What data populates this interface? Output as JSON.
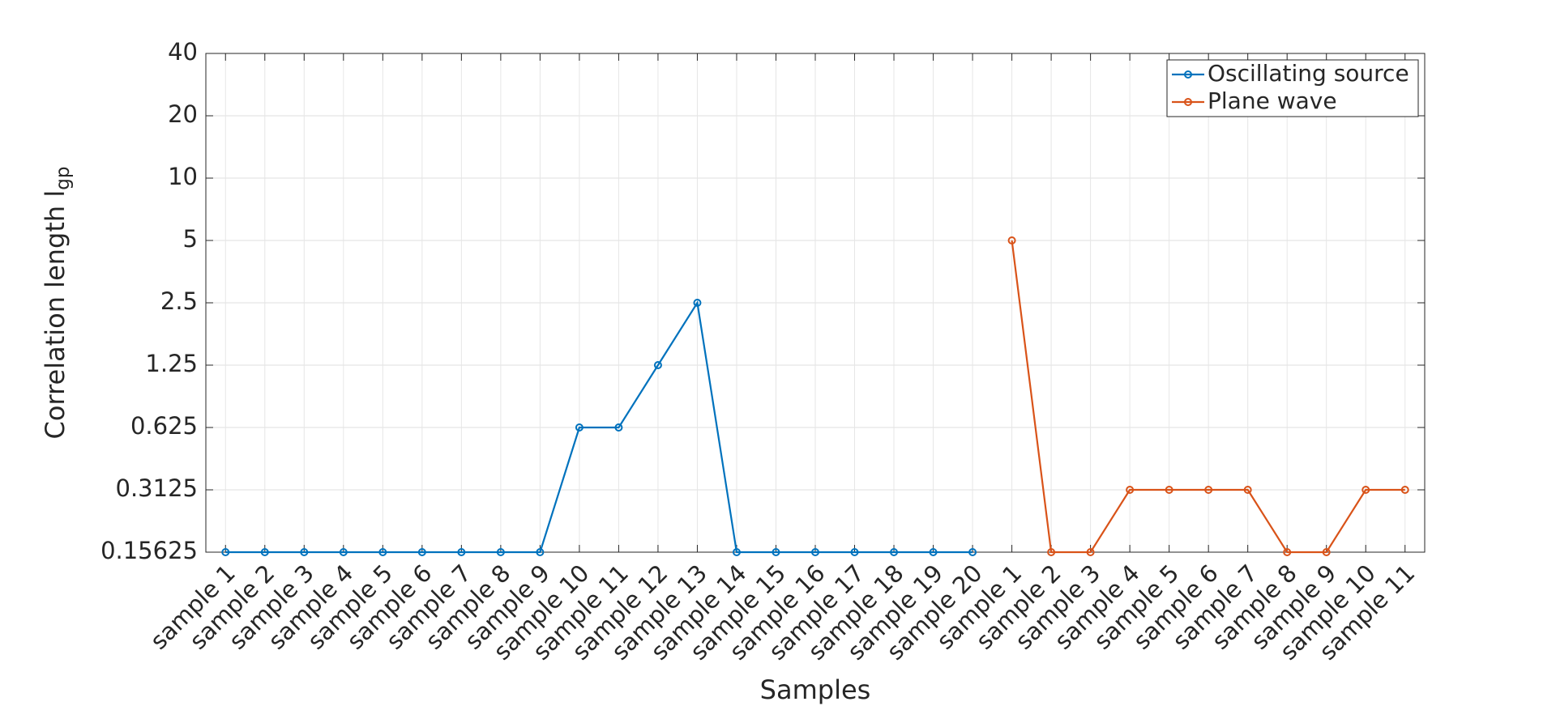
{
  "chart_data": {
    "type": "line",
    "ylabel": "Correlation length l",
    "ylabel_subscript": "gp",
    "xlabel": "Samples",
    "categories": [
      "sample 1",
      "sample 2",
      "sample 3",
      "sample 4",
      "sample 5",
      "sample 6",
      "sample 7",
      "sample 8",
      "sample 9",
      "sample 10",
      "sample 11",
      "sample 12",
      "sample 13",
      "sample 14",
      "sample 15",
      "sample 16",
      "sample 17",
      "sample 18",
      "sample 19",
      "sample 20",
      "sample 1",
      "sample 2",
      "sample 3",
      "sample 4",
      "sample 5",
      "sample 6",
      "sample 7",
      "sample 8",
      "sample 9",
      "sample 10",
      "sample 11"
    ],
    "series": [
      {
        "name": "Oscillating source",
        "color": "#0072bd",
        "values": [
          0.15625,
          0.15625,
          0.15625,
          0.15625,
          0.15625,
          0.15625,
          0.15625,
          0.15625,
          0.15625,
          0.625,
          0.625,
          1.25,
          2.5,
          0.15625,
          0.15625,
          0.15625,
          0.15625,
          0.15625,
          0.15625,
          0.15625,
          null,
          null,
          null,
          null,
          null,
          null,
          null,
          null,
          null,
          null,
          null
        ]
      },
      {
        "name": "Plane wave",
        "color": "#d95319",
        "values": [
          null,
          null,
          null,
          null,
          null,
          null,
          null,
          null,
          null,
          null,
          null,
          null,
          null,
          null,
          null,
          null,
          null,
          null,
          null,
          null,
          5,
          0.15625,
          0.15625,
          0.3125,
          0.3125,
          0.3125,
          0.3125,
          0.15625,
          0.15625,
          0.3125,
          0.3125
        ]
      }
    ],
    "ylim": [
      0.15625,
      40
    ],
    "yticks": [
      0.15625,
      0.3125,
      0.625,
      1.25,
      2.5,
      5,
      10,
      20,
      40
    ],
    "log_y": true,
    "grid": true,
    "legend": "northeast"
  }
}
